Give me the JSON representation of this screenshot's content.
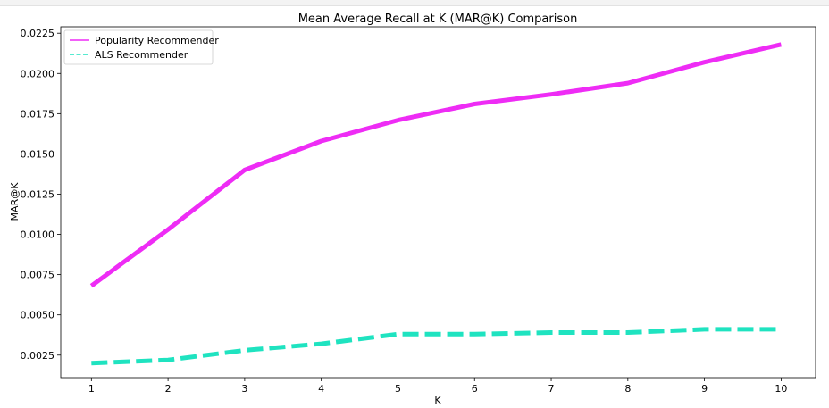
{
  "chart_data": {
    "type": "line",
    "title": "Mean Average Recall at K (MAR@K) Comparison",
    "xlabel": "K",
    "ylabel": "MAR@K",
    "x": [
      1,
      2,
      3,
      4,
      5,
      6,
      7,
      8,
      9,
      10
    ],
    "xlim": [
      0.6,
      10.45
    ],
    "ylim": [
      0.0011,
      0.0229
    ],
    "yticks": [
      0.0025,
      0.005,
      0.0075,
      0.01,
      0.0125,
      0.015,
      0.0175,
      0.02,
      0.0225
    ],
    "ytick_labels": [
      "0.0025",
      "0.0050",
      "0.0075",
      "0.0100",
      "0.0125",
      "0.0150",
      "0.0175",
      "0.0200",
      "0.0225"
    ],
    "xtick_labels": [
      "1",
      "2",
      "3",
      "4",
      "5",
      "6",
      "7",
      "8",
      "9",
      "10"
    ],
    "grid": false,
    "legend_position": "top-left",
    "series": [
      {
        "name": "Popularity Recommender",
        "color": "#ee2cf5",
        "style": "solid",
        "values": [
          0.0068,
          0.0103,
          0.014,
          0.0158,
          0.0171,
          0.0181,
          0.0187,
          0.0194,
          0.0207,
          0.0218
        ]
      },
      {
        "name": "ALS Recommender",
        "color": "#1fe3c0",
        "style": "dashed",
        "values": [
          0.002,
          0.0022,
          0.0028,
          0.0032,
          0.0038,
          0.0038,
          0.0039,
          0.0039,
          0.0041,
          0.0041
        ]
      }
    ]
  }
}
